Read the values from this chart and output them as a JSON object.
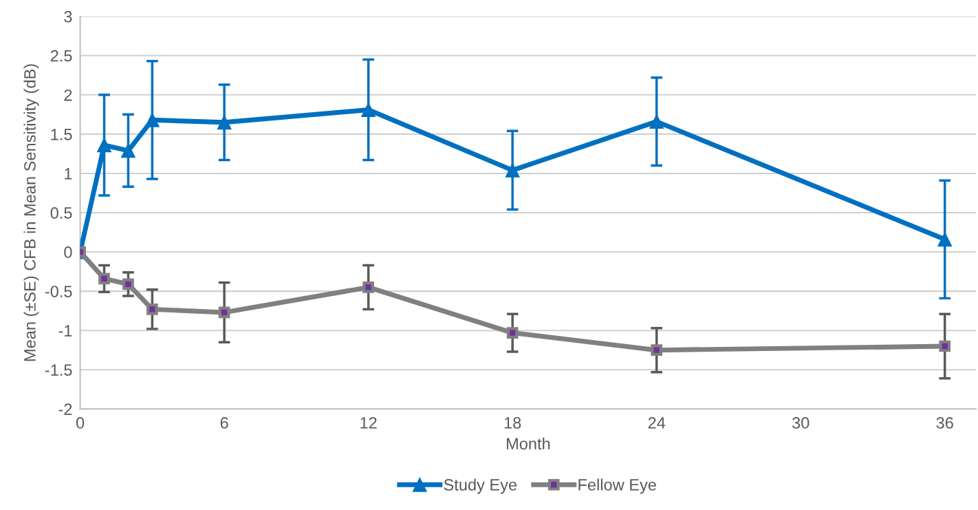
{
  "chart_data": {
    "type": "line",
    "xlabel": "Month",
    "ylabel": "Mean (±SE) CFB in Mean Sensitivity (dB)",
    "x": [
      0,
      1,
      2,
      3,
      6,
      12,
      18,
      24,
      36
    ],
    "series": [
      {
        "name": "Study Eye",
        "color": "#0070c0",
        "marker": "triangle",
        "values": [
          0,
          1.36,
          1.29,
          1.68,
          1.65,
          1.81,
          1.04,
          1.66,
          0.16
        ],
        "errors": [
          null,
          0.64,
          0.46,
          0.75,
          0.48,
          0.64,
          0.5,
          0.56,
          0.75
        ]
      },
      {
        "name": "Fellow Eye",
        "color": "#808080",
        "marker": "square",
        "values": [
          0,
          -0.34,
          -0.41,
          -0.73,
          -0.77,
          -0.45,
          -1.03,
          -1.25,
          -1.2
        ],
        "errors": [
          null,
          0.17,
          0.15,
          0.25,
          0.38,
          0.28,
          0.24,
          0.28,
          0.41
        ]
      }
    ],
    "xlim": [
      0,
      37.3
    ],
    "xticks": [
      0,
      6,
      12,
      18,
      24,
      30,
      36
    ],
    "ylim": [
      -2,
      3
    ],
    "yticks": [
      -2,
      -1.5,
      -1,
      -0.5,
      0,
      0.5,
      1,
      1.5,
      2,
      2.5,
      3
    ],
    "grid": "y",
    "legend": "bottom",
    "line_style": "solid"
  }
}
